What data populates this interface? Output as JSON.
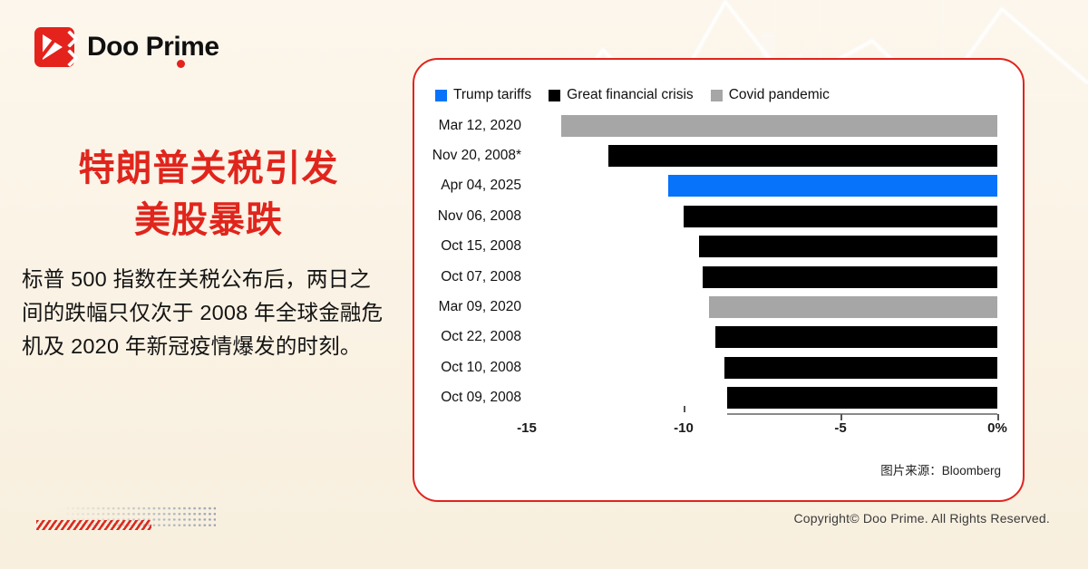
{
  "brand": {
    "logo_text": "Doo Prime",
    "accent_red": "#E0241E"
  },
  "headline": {
    "line1": "特朗普关税引发",
    "line2": "美股暴跌"
  },
  "body_text": "标普 500 指数在关税公布后，两日之\n间的跌幅只仅次于 2008 年全球金融危\n机及 2020 年新冠疫情爆发的时刻。",
  "chart_card": {
    "source_note": "图片来源：Bloomberg"
  },
  "chart_data": {
    "type": "bar",
    "orientation": "horizontal",
    "title": "",
    "xlabel": "",
    "ylabel": "",
    "xlim": [
      -15,
      0
    ],
    "grid": false,
    "legend_position": "top-left",
    "legend": [
      {
        "label": "Trump tariffs",
        "color": "#0673FA"
      },
      {
        "label": "Great financial crisis",
        "color": "#000000"
      },
      {
        "label": "Covid pandemic",
        "color": "#A6A6A6"
      }
    ],
    "rows": [
      {
        "label": "Mar 12, 2020",
        "value": -13.9,
        "series": "Covid pandemic"
      },
      {
        "label": "Nov 20, 2008*",
        "value": -12.4,
        "series": "Great financial crisis"
      },
      {
        "label": "Apr 04, 2025",
        "value": -10.5,
        "series": "Trump tariffs"
      },
      {
        "label": "Nov 06, 2008",
        "value": -10.0,
        "series": "Great financial crisis"
      },
      {
        "label": "Oct 15, 2008",
        "value": -9.5,
        "series": "Great financial crisis"
      },
      {
        "label": "Oct 07, 2008",
        "value": -9.4,
        "series": "Great financial crisis"
      },
      {
        "label": "Mar 09, 2020",
        "value": -9.2,
        "series": "Covid pandemic"
      },
      {
        "label": "Oct 22, 2008",
        "value": -9.0,
        "series": "Great financial crisis"
      },
      {
        "label": "Oct 10, 2008",
        "value": -8.7,
        "series": "Great financial crisis"
      },
      {
        "label": "Oct 09, 2008",
        "value": -8.6,
        "series": "Great financial crisis"
      }
    ],
    "x_ticks": [
      {
        "label": "-15",
        "value": -15
      },
      {
        "label": "-10",
        "value": -10
      },
      {
        "label": "-5",
        "value": -5
      },
      {
        "label": "0%",
        "value": 0
      }
    ],
    "unit": "percent (two-day S&P 500 decline)"
  },
  "footer": {
    "copyright": "Copyright© Doo Prime. All Rights Reserved."
  }
}
